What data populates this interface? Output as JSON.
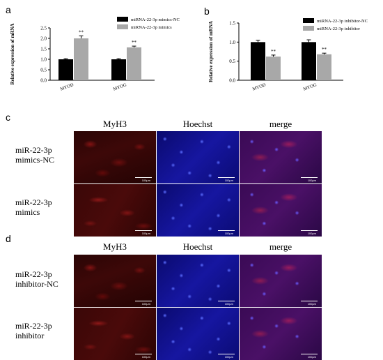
{
  "panels": {
    "a": "a",
    "b": "b",
    "c": "c",
    "d": "d"
  },
  "scale_bar_label": "100μm",
  "chart_data": [
    {
      "type": "bar",
      "panel": "a",
      "categories": [
        "MYOD",
        "MYOG"
      ],
      "series": [
        {
          "name": "miRNA-22-3p mimics-NC",
          "values": [
            1.0,
            1.0
          ],
          "errors": [
            0.03,
            0.03
          ],
          "color": "#000000"
        },
        {
          "name": "miRNA-22-3p mimics",
          "values": [
            2.0,
            1.57
          ],
          "errors": [
            0.12,
            0.06
          ],
          "color": "#a8a8a8"
        }
      ],
      "significance": [
        "**",
        "**"
      ],
      "ylabel": "Relative expression of mRNA",
      "ylim": [
        0,
        2.5
      ],
      "yticks": [
        0.0,
        0.5,
        1.0,
        1.5,
        2.0,
        2.5
      ],
      "legend": "top-right"
    },
    {
      "type": "bar",
      "panel": "b",
      "categories": [
        "MYOD",
        "MYOG"
      ],
      "series": [
        {
          "name": "miRNA-22-3p inhibitor-NC",
          "values": [
            1.0,
            1.0
          ],
          "errors": [
            0.05,
            0.06
          ],
          "color": "#000000"
        },
        {
          "name": "miRNA-22-3p inhibitor",
          "values": [
            0.62,
            0.68
          ],
          "errors": [
            0.04,
            0.03
          ],
          "color": "#a8a8a8"
        }
      ],
      "significance": [
        "**",
        "**"
      ],
      "ylabel": "Relative expression of mRNA",
      "ylim": [
        0,
        1.5
      ],
      "yticks": [
        0.0,
        0.5,
        1.0,
        1.5
      ],
      "legend": "top-right"
    }
  ],
  "panel_c": {
    "columns": [
      "MyH3",
      "Hoechst",
      "merge"
    ],
    "rows": [
      {
        "line1": "miR-22-3p",
        "line2": "mimics-NC"
      },
      {
        "line1": "miR-22-3p",
        "line2": "mimics"
      }
    ]
  },
  "panel_d": {
    "columns": [
      "MyH3",
      "Hoechst",
      "merge"
    ],
    "rows": [
      {
        "line1": "miR-22-3p",
        "line2": "inhibitor-NC"
      },
      {
        "line1": "miR-22-3p",
        "line2": "inhibitor"
      }
    ]
  },
  "colors": {
    "ctrl_bar": "#000000",
    "treat_bar": "#a8a8a8"
  }
}
